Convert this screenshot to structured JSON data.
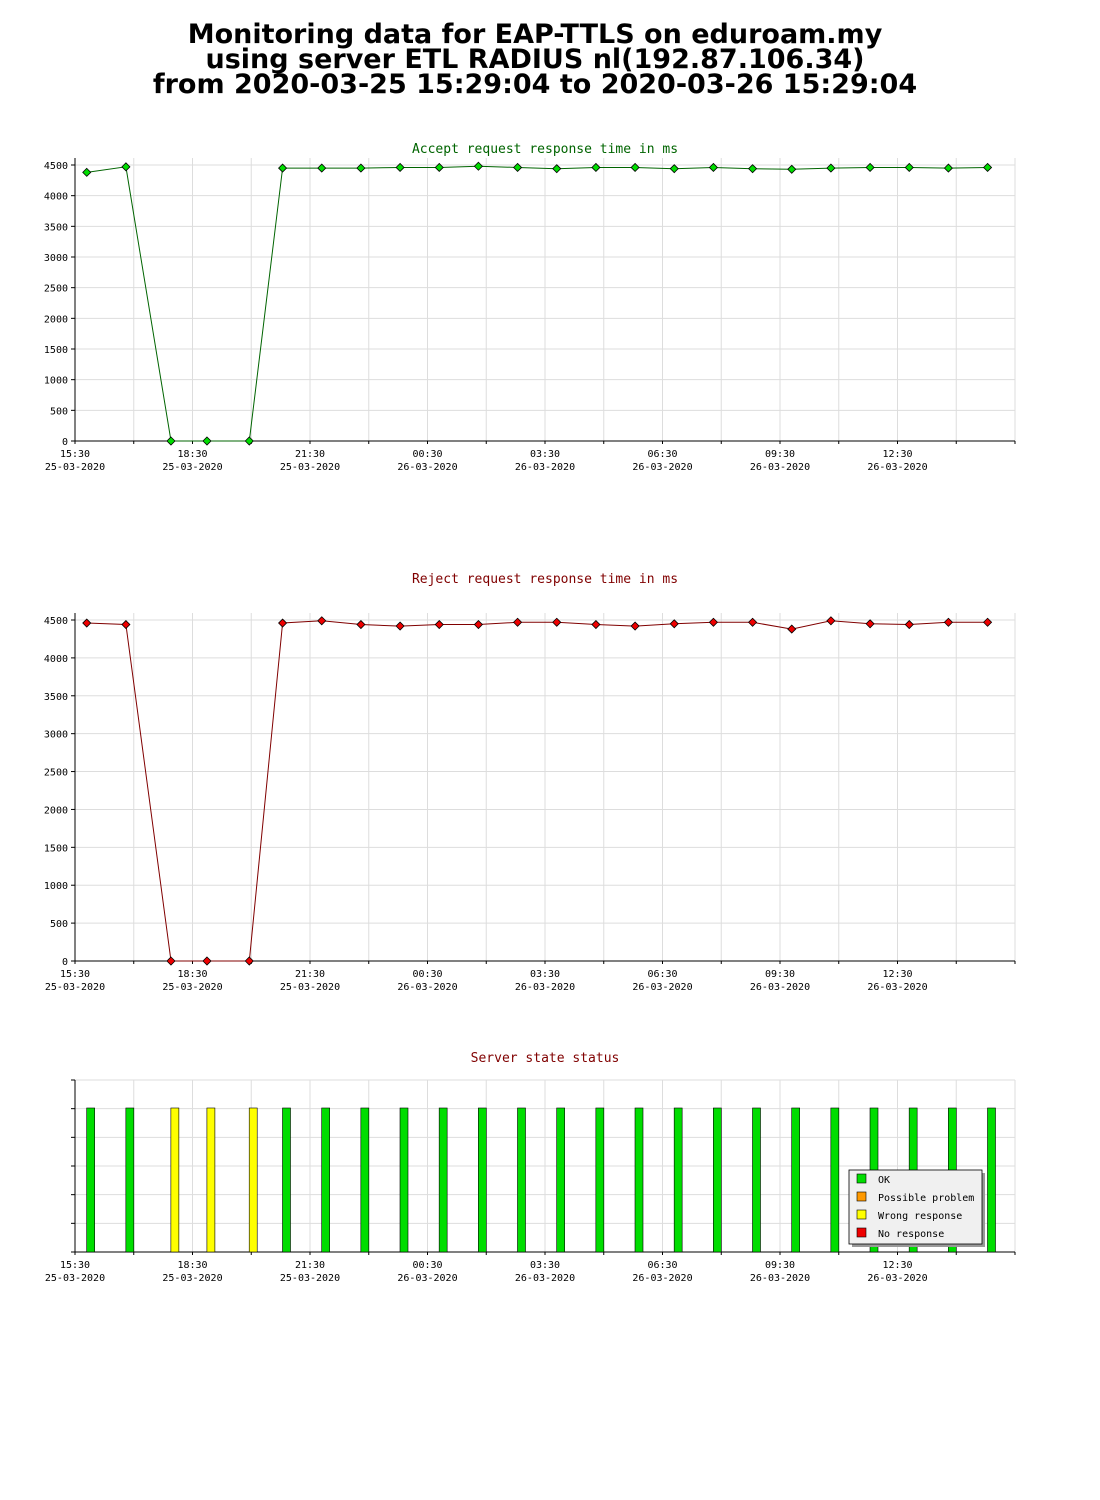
{
  "header": {
    "line1": "Monitoring data for EAP-TTLS on eduroam.my",
    "line2": "using server ETL RADIUS nl(192.87.106.34)",
    "line3": "from 2020-03-25 15:29:04 to 2020-03-26 15:29:04"
  },
  "colors": {
    "accept_line": "#006400",
    "accept_marker": "#00dd00",
    "reject_line": "#800000",
    "reject_marker": "#ee0000",
    "ok": "#00dd00",
    "possible_problem": "#ff9900",
    "wrong_response": "#ffff00",
    "no_response": "#ee0000"
  },
  "chart_data": [
    {
      "type": "line",
      "title": "Accept request response time in ms",
      "ylim": [
        0,
        4500
      ],
      "yticks": [
        0,
        500,
        1000,
        1500,
        2000,
        2500,
        3000,
        3500,
        4000,
        4500
      ],
      "xlim_hours": [
        0,
        24
      ],
      "xtick_labels": [
        {
          "time": "15:30",
          "date": "25-03-2020"
        },
        {
          "time": "18:30",
          "date": "25-03-2020"
        },
        {
          "time": "21:30",
          "date": "25-03-2020"
        },
        {
          "time": "00:30",
          "date": "26-03-2020"
        },
        {
          "time": "03:30",
          "date": "26-03-2020"
        },
        {
          "time": "06:30",
          "date": "26-03-2020"
        },
        {
          "time": "09:30",
          "date": "26-03-2020"
        },
        {
          "time": "12:30",
          "date": "26-03-2020"
        }
      ],
      "grid": true,
      "x_hours": [
        0.3,
        1.3,
        2.45,
        3.37,
        4.45,
        5.3,
        6.3,
        7.3,
        8.3,
        9.3,
        10.3,
        11.3,
        12.3,
        13.3,
        14.3,
        15.3,
        16.3,
        17.3,
        18.3,
        19.3,
        20.3,
        21.3,
        22.3,
        23.3
      ],
      "values": [
        4380,
        4470,
        0,
        0,
        0,
        4450,
        4450,
        4450,
        4460,
        4460,
        4480,
        4460,
        4440,
        4460,
        4460,
        4440,
        4460,
        4440,
        4430,
        4450,
        4460,
        4460,
        4450,
        4460
      ]
    },
    {
      "type": "line",
      "title": "Reject request response time in ms",
      "ylim": [
        0,
        4500
      ],
      "yticks": [
        0,
        500,
        1000,
        1500,
        2000,
        2500,
        3000,
        3500,
        4000,
        4500
      ],
      "xlim_hours": [
        0,
        24
      ],
      "xtick_labels": [
        {
          "time": "15:30",
          "date": "25-03-2020"
        },
        {
          "time": "18:30",
          "date": "25-03-2020"
        },
        {
          "time": "21:30",
          "date": "25-03-2020"
        },
        {
          "time": "00:30",
          "date": "26-03-2020"
        },
        {
          "time": "03:30",
          "date": "26-03-2020"
        },
        {
          "time": "06:30",
          "date": "26-03-2020"
        },
        {
          "time": "09:30",
          "date": "26-03-2020"
        },
        {
          "time": "12:30",
          "date": "26-03-2020"
        }
      ],
      "grid": true,
      "x_hours": [
        0.3,
        1.3,
        2.45,
        3.37,
        4.45,
        5.3,
        6.3,
        7.3,
        8.3,
        9.3,
        10.3,
        11.3,
        12.3,
        13.3,
        14.3,
        15.3,
        16.3,
        17.3,
        18.3,
        19.3,
        20.3,
        21.3,
        22.3,
        23.3
      ],
      "values": [
        4460,
        4440,
        0,
        0,
        0,
        4460,
        4490,
        4440,
        4420,
        4440,
        4440,
        4470,
        4470,
        4440,
        4420,
        4450,
        4470,
        4470,
        4380,
        4490,
        4450,
        4440,
        4470,
        4470
      ]
    },
    {
      "type": "bar",
      "title": "Server state status",
      "xlim_hours": [
        0,
        24
      ],
      "xtick_labels": [
        {
          "time": "15:30",
          "date": "25-03-2020"
        },
        {
          "time": "18:30",
          "date": "25-03-2020"
        },
        {
          "time": "21:30",
          "date": "25-03-2020"
        },
        {
          "time": "00:30",
          "date": "26-03-2020"
        },
        {
          "time": "03:30",
          "date": "26-03-2020"
        },
        {
          "time": "06:30",
          "date": "26-03-2020"
        },
        {
          "time": "09:30",
          "date": "26-03-2020"
        },
        {
          "time": "12:30",
          "date": "26-03-2020"
        }
      ],
      "grid": true,
      "legend_position": "bottom-right",
      "legend": [
        {
          "label": "OK",
          "color": "#00dd00"
        },
        {
          "label": "Possible problem",
          "color": "#ff9900"
        },
        {
          "label": "Wrong response",
          "color": "#ffff00"
        },
        {
          "label": "No response",
          "color": "#ee0000"
        }
      ],
      "x_hours": [
        0.4,
        1.4,
        2.55,
        3.47,
        4.55,
        5.4,
        6.4,
        7.4,
        8.4,
        9.4,
        10.4,
        11.4,
        12.4,
        13.4,
        14.4,
        15.4,
        16.4,
        17.4,
        18.4,
        19.4,
        20.4,
        21.4,
        22.4,
        23.4
      ],
      "states": [
        "OK",
        "OK",
        "Wrong response",
        "Wrong response",
        "Wrong response",
        "OK",
        "OK",
        "OK",
        "OK",
        "OK",
        "OK",
        "OK",
        "OK",
        "OK",
        "OK",
        "OK",
        "OK",
        "OK",
        "OK",
        "OK",
        "OK",
        "OK",
        "OK",
        "OK"
      ]
    }
  ]
}
